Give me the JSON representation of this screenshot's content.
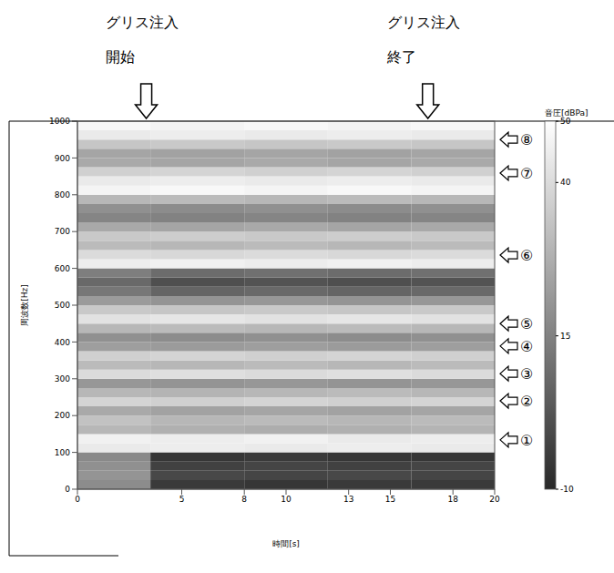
{
  "chart_data": {
    "type": "heatmap",
    "x_label": "時間[s]",
    "y_label": "周波数[Hz]",
    "xlim": [
      0,
      20
    ],
    "xticks": [
      0,
      5,
      8,
      10,
      13,
      15,
      18,
      20
    ],
    "ylim": [
      0,
      1000
    ],
    "yticks": [
      0,
      100,
      200,
      300,
      400,
      500,
      600,
      700,
      800,
      900,
      1000
    ],
    "grid": false,
    "time_bins": [
      0,
      3.5,
      8,
      12,
      16,
      20
    ],
    "freq_bins": [
      0,
      25,
      50,
      75,
      100,
      125,
      150,
      175,
      200,
      225,
      250,
      275,
      300,
      325,
      350,
      375,
      400,
      425,
      450,
      475,
      500,
      525,
      550,
      575,
      600,
      625,
      650,
      675,
      700,
      725,
      750,
      775,
      800,
      825,
      850,
      875,
      900,
      925,
      950,
      975,
      1000
    ],
    "cells": [
      [
        18,
        -5,
        -6,
        -5,
        -5
      ],
      [
        20,
        -1,
        -2,
        -1,
        -2
      ],
      [
        19,
        -3,
        -2,
        -3,
        -2
      ],
      [
        17,
        -6,
        -5,
        -6,
        -6
      ],
      [
        44,
        45,
        44,
        45,
        44
      ],
      [
        46,
        45,
        46,
        44,
        45
      ],
      [
        30,
        28,
        27,
        28,
        29
      ],
      [
        33,
        30,
        31,
        30,
        31
      ],
      [
        26,
        24,
        25,
        24,
        25
      ],
      [
        38,
        37,
        38,
        37,
        38
      ],
      [
        30,
        29,
        30,
        31,
        30
      ],
      [
        21,
        20,
        21,
        20,
        21
      ],
      [
        40,
        41,
        40,
        41,
        40
      ],
      [
        31,
        30,
        31,
        30,
        31
      ],
      [
        37,
        38,
        37,
        38,
        37
      ],
      [
        23,
        22,
        23,
        22,
        23
      ],
      [
        19,
        18,
        19,
        18,
        19
      ],
      [
        30,
        31,
        30,
        31,
        30
      ],
      [
        42,
        43,
        42,
        43,
        42
      ],
      [
        35,
        34,
        35,
        34,
        35
      ],
      [
        22,
        20,
        21,
        20,
        21
      ],
      [
        12,
        7,
        8,
        7,
        8
      ],
      [
        8,
        1,
        2,
        1,
        2
      ],
      [
        14,
        9,
        10,
        9,
        10
      ],
      [
        45,
        46,
        45,
        46,
        45
      ],
      [
        40,
        39,
        40,
        39,
        40
      ],
      [
        31,
        30,
        31,
        30,
        31
      ],
      [
        35,
        36,
        35,
        36,
        35
      ],
      [
        26,
        25,
        26,
        25,
        26
      ],
      [
        16,
        15,
        16,
        15,
        16
      ],
      [
        19,
        18,
        19,
        18,
        19
      ],
      [
        30,
        31,
        30,
        31,
        30
      ],
      [
        47,
        48,
        47,
        48,
        47
      ],
      [
        44,
        45,
        44,
        45,
        44
      ],
      [
        37,
        38,
        37,
        38,
        37
      ],
      [
        26,
        25,
        26,
        25,
        26
      ],
      [
        25,
        24,
        25,
        24,
        25
      ],
      [
        34,
        35,
        34,
        35,
        34
      ],
      [
        44,
        45,
        44,
        45,
        44
      ],
      [
        48,
        47,
        48,
        47,
        48
      ]
    ],
    "colorbar": {
      "label": "音圧[dBPa]",
      "range": [
        -10,
        50
      ],
      "ticks": [
        -10,
        15,
        40,
        50
      ]
    },
    "annotations": [
      {
        "lines": [
          "グリス注入",
          "開始"
        ],
        "x": 3.3
      },
      {
        "lines": [
          "グリス注入",
          "終了"
        ],
        "x": 16.8
      }
    ],
    "markers": [
      {
        "label": "①",
        "y": 134
      },
      {
        "label": "②",
        "y": 240
      },
      {
        "label": "③",
        "y": 314
      },
      {
        "label": "④",
        "y": 389
      },
      {
        "label": "⑤",
        "y": 450
      },
      {
        "label": "⑥",
        "y": 636
      },
      {
        "label": "⑦",
        "y": 859
      },
      {
        "label": "⑧",
        "y": 950
      }
    ]
  }
}
